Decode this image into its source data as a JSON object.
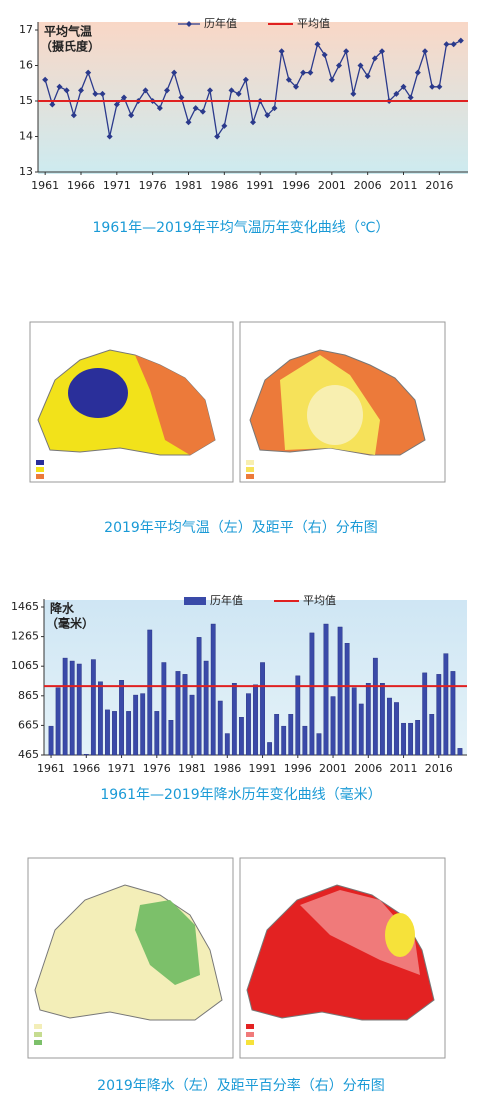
{
  "chart_data": [
    {
      "type": "line",
      "title": "平均气温",
      "subtitle": "（摄氏度）",
      "x": [
        1961,
        1962,
        1963,
        1964,
        1965,
        1966,
        1967,
        1968,
        1969,
        1970,
        1971,
        1972,
        1973,
        1974,
        1975,
        1976,
        1977,
        1978,
        1979,
        1980,
        1981,
        1982,
        1983,
        1984,
        1985,
        1986,
        1987,
        1988,
        1989,
        1990,
        1991,
        1992,
        1993,
        1994,
        1995,
        1996,
        1997,
        1998,
        1999,
        2000,
        2001,
        2002,
        2003,
        2004,
        2005,
        2006,
        2007,
        2008,
        2009,
        2010,
        2011,
        2012,
        2013,
        2014,
        2015,
        2016,
        2017,
        2018,
        2019
      ],
      "series": [
        {
          "name": "历年值",
          "color": "#2b3a8c",
          "values": [
            15.6,
            14.9,
            15.4,
            15.3,
            14.6,
            15.3,
            15.8,
            15.2,
            15.2,
            14.0,
            14.9,
            15.1,
            14.6,
            15.0,
            15.3,
            15.0,
            14.8,
            15.3,
            15.8,
            15.1,
            14.4,
            14.8,
            14.7,
            15.3,
            14.0,
            14.3,
            15.3,
            15.2,
            15.6,
            14.4,
            15.0,
            14.6,
            14.8,
            16.4,
            15.6,
            15.4,
            15.8,
            15.8,
            16.6,
            16.3,
            15.6,
            16.0,
            16.4,
            15.2,
            16.0,
            15.7,
            16.2,
            16.4,
            15.0,
            15.2,
            15.4,
            15.1,
            15.8,
            16.4,
            15.4,
            15.4,
            16.6,
            16.6,
            16.7
          ]
        }
      ],
      "reference_line": {
        "name": "平均值",
        "value": 15,
        "color": "#e02020"
      },
      "xlim": [
        1960,
        2020
      ],
      "xticks": [
        1961,
        1966,
        1971,
        1976,
        1981,
        1986,
        1991,
        1996,
        2001,
        2006,
        2011,
        2016
      ],
      "ylim": [
        13,
        17
      ],
      "yticks": [
        13,
        14,
        15,
        16,
        17
      ]
    },
    {
      "type": "bar",
      "title": "降水",
      "subtitle": "（毫米）",
      "x": [
        1961,
        1962,
        1963,
        1964,
        1965,
        1966,
        1967,
        1968,
        1969,
        1970,
        1971,
        1972,
        1973,
        1974,
        1975,
        1976,
        1977,
        1978,
        1979,
        1980,
        1981,
        1982,
        1983,
        1984,
        1985,
        1986,
        1987,
        1988,
        1989,
        1990,
        1991,
        1992,
        1993,
        1994,
        1995,
        1996,
        1997,
        1998,
        1999,
        2000,
        2001,
        2002,
        2003,
        2004,
        2005,
        2006,
        2007,
        2008,
        2009,
        2010,
        2011,
        2012,
        2013,
        2014,
        2015,
        2016,
        2017,
        2018,
        2019
      ],
      "series": [
        {
          "name": "历年值",
          "color": "#3a4aa8",
          "values": [
            660,
            920,
            1120,
            1100,
            1080,
            470,
            1110,
            960,
            770,
            760,
            970,
            760,
            870,
            880,
            1310,
            760,
            1090,
            700,
            1030,
            1010,
            870,
            1260,
            1100,
            1350,
            830,
            610,
            950,
            720,
            880,
            940,
            1090,
            550,
            740,
            660,
            740,
            1000,
            660,
            1290,
            610,
            1350,
            860,
            1330,
            1220,
            920,
            810,
            950,
            1120,
            950,
            850,
            820,
            680,
            680,
            700,
            1020,
            740,
            1010,
            1150,
            1030,
            510
          ]
        }
      ],
      "reference_line": {
        "name": "平均值",
        "value": 930,
        "color": "#e02020"
      },
      "xlim": [
        1960,
        2020
      ],
      "xticks": [
        1961,
        1966,
        1971,
        1976,
        1981,
        1986,
        1991,
        1996,
        2001,
        2006,
        2011,
        2016
      ],
      "ylim": [
        465,
        1465
      ],
      "yticks": [
        465,
        665,
        865,
        1065,
        1265,
        1465
      ]
    }
  ],
  "captions": [
    "1961年—2019年平均气温历年变化曲线（℃）",
    "2019年平均气温（左）及距平（右）分布图",
    "1961年—2019年降水历年变化曲线（毫米）",
    "2019年降水（左）及距平百分率（右）分布图"
  ]
}
